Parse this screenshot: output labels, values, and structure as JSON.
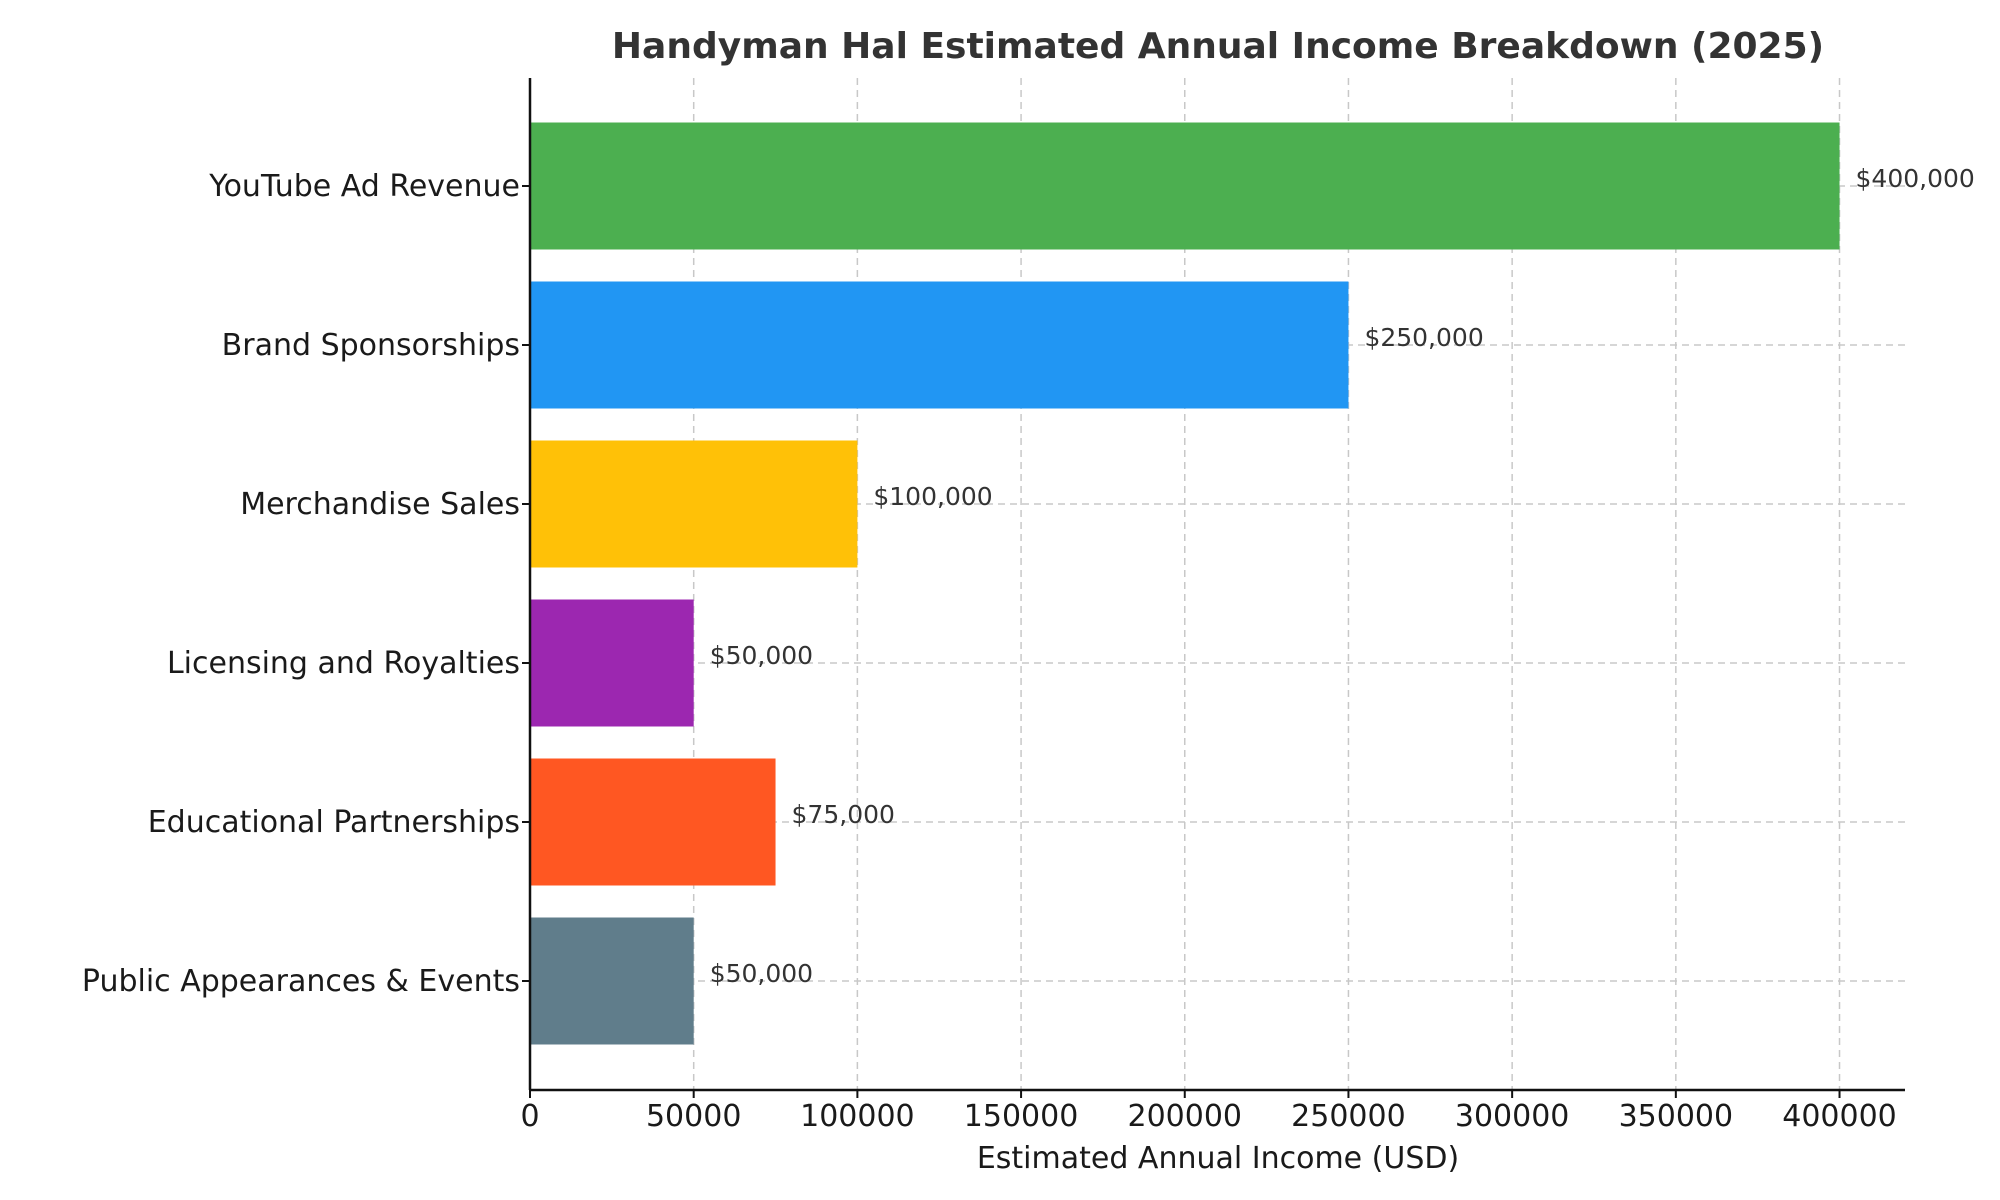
{
  "chart_data": {
    "type": "bar",
    "orientation": "horizontal",
    "title": "Handyman Hal Estimated Annual Income Breakdown (2025)",
    "xlabel": "Estimated Annual Income (USD)",
    "ylabel": "",
    "xlim": [
      0,
      420000
    ],
    "x_ticks": [
      0,
      50000,
      100000,
      150000,
      200000,
      250000,
      300000,
      350000,
      400000
    ],
    "x_tick_labels": [
      "0",
      "50000",
      "100000",
      "150000",
      "200000",
      "250000",
      "300000",
      "350000",
      "400000"
    ],
    "grid": true,
    "categories": [
      "YouTube Ad Revenue",
      "Brand Sponsorships",
      "Merchandise Sales",
      "Licensing and Royalties",
      "Educational Partnerships",
      "Public Appearances & Events"
    ],
    "values": [
      400000,
      250000,
      100000,
      50000,
      75000,
      50000
    ],
    "value_labels": [
      "$400,000",
      "$250,000",
      "$100,000",
      "$50,000",
      "$75,000",
      "$50,000"
    ],
    "colors": [
      "#4caf50",
      "#2196f3",
      "#ffc107",
      "#9c27b0",
      "#ff5722",
      "#607d8b"
    ]
  }
}
